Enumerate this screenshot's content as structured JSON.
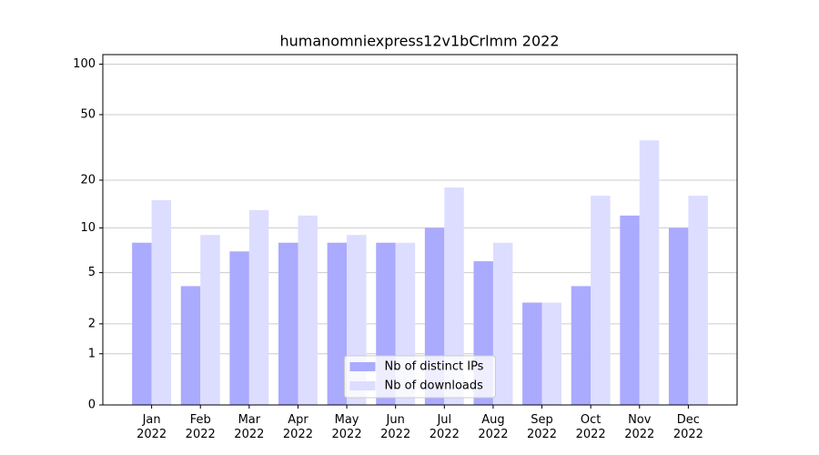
{
  "chart_data": {
    "type": "bar",
    "title": "humanomniexpress12v1bCrlmm 2022",
    "categories": [
      "Jan\n2022",
      "Feb\n2022",
      "Mar\n2022",
      "Apr\n2022",
      "May\n2022",
      "Jun\n2022",
      "Jul\n2022",
      "Aug\n2022",
      "Sep\n2022",
      "Oct\n2022",
      "Nov\n2022",
      "Dec\n2022"
    ],
    "series": [
      {
        "name": "Nb of distinct IPs",
        "color": "#aaaaff",
        "values": [
          8,
          4,
          7,
          8,
          8,
          8,
          10,
          6,
          3,
          4,
          12,
          10
        ]
      },
      {
        "name": "Nb of downloads",
        "color": "#ddddff",
        "values": [
          15,
          9,
          13,
          12,
          9,
          8,
          18,
          8,
          3,
          16,
          35,
          16
        ]
      }
    ],
    "yscale": "log1p",
    "ylim": [
      0,
      114
    ],
    "yticks": [
      0,
      1,
      2,
      5,
      10,
      20,
      50,
      100
    ],
    "grid": true,
    "legend": "lower center"
  }
}
